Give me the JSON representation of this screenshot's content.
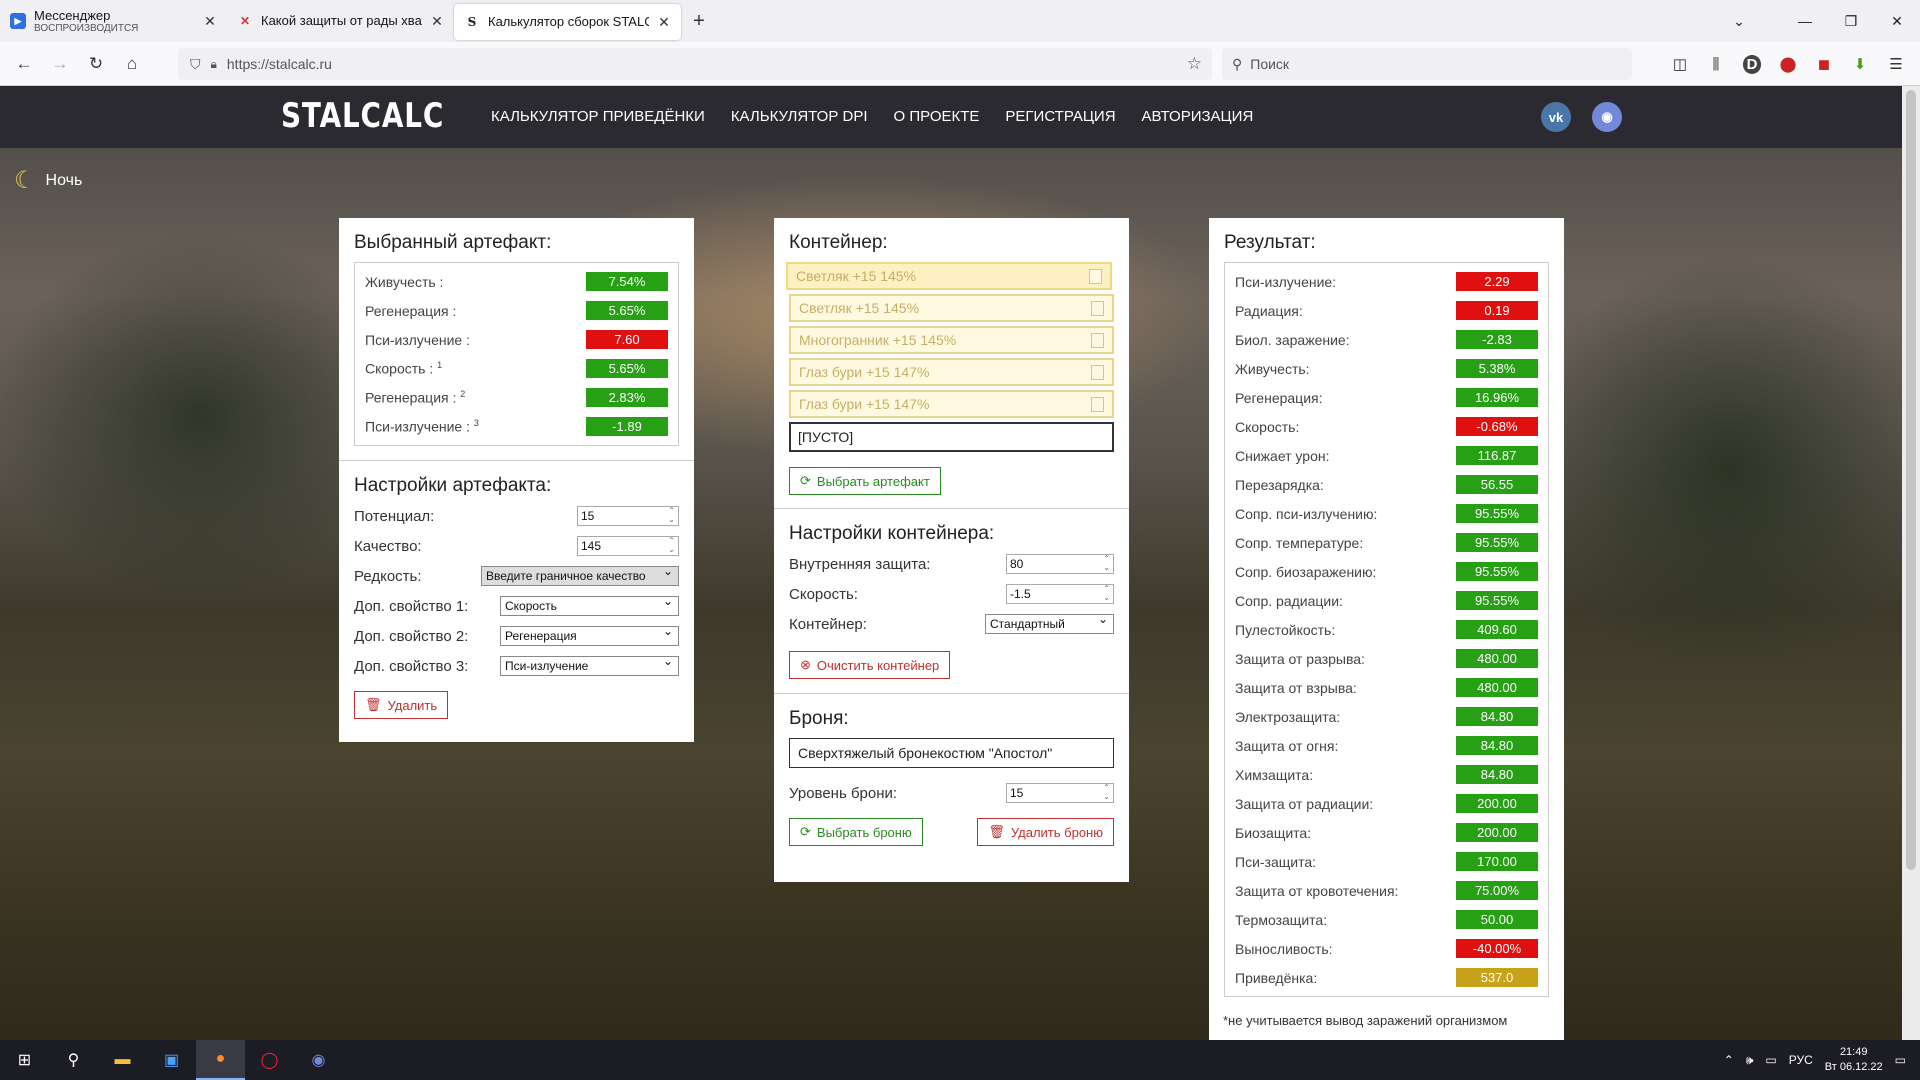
{
  "browser": {
    "tabs": [
      {
        "title": "Мессенджер",
        "subtitle": "ВОСПРОИЗВОДИТСЯ",
        "active": false
      },
      {
        "title": "Какой защиты от рады хватит",
        "active": false
      },
      {
        "title": "Калькулятор сборок STALCALC",
        "active": true
      }
    ],
    "url": "https://stalcalc.ru",
    "search_placeholder": "Поиск"
  },
  "site": {
    "logo": "STALCALC",
    "menu": [
      "КАЛЬКУЛЯТОР ПРИВЕДЁНКИ",
      "КАЛЬКУЛЯТОР DPI",
      "О ПРОЕКТЕ",
      "РЕГИСТРАЦИЯ",
      "АВТОРИЗАЦИЯ"
    ],
    "night_label": "Ночь",
    "social": {
      "vk": "VK",
      "discord": "Discord"
    }
  },
  "artifact": {
    "title": "Выбранный артефакт:",
    "stats": [
      {
        "label": "Живучесть :",
        "sup": "",
        "value": "7.54%",
        "color": "g"
      },
      {
        "label": "Регенерация :",
        "sup": "",
        "value": "5.65%",
        "color": "g"
      },
      {
        "label": "Пси-излучение :",
        "sup": "",
        "value": "7.60",
        "color": "r"
      },
      {
        "label": "Скорость :",
        "sup": "1",
        "value": "5.65%",
        "color": "g"
      },
      {
        "label": "Регенерация :",
        "sup": "2",
        "value": "2.83%",
        "color": "g"
      },
      {
        "label": "Пси-излучение :",
        "sup": "3",
        "value": "-1.89",
        "color": "g"
      }
    ],
    "settings_title": "Настройки артефакта:",
    "potential_label": "Потенциал:",
    "potential_value": "15",
    "quality_label": "Качество:",
    "quality_value": "145",
    "rarity_label": "Редкость:",
    "rarity_value": "Введите граничное качество",
    "extra1_label": "Доп. свойство 1:",
    "extra1_value": "Скорость",
    "extra2_label": "Доп. свойство 2:",
    "extra2_value": "Регенерация",
    "extra3_label": "Доп. свойство 3:",
    "extra3_value": "Пси-излучение",
    "delete_label": "Удалить"
  },
  "container": {
    "title": "Контейнер:",
    "slots": [
      "Светляк +15 145%",
      "Светляк +15 145%",
      "Многогранник +15 145%",
      "Глаз бури +15 147%",
      "Глаз бури +15 147%"
    ],
    "empty_slot": "[ПУСТО]",
    "choose_label": "Выбрать артефакт",
    "settings_title": "Настройки контейнера:",
    "inner_label": "Внутренняя защита:",
    "inner_value": "80",
    "speed_label": "Скорость:",
    "speed_value": "-1.5",
    "type_label": "Контейнер:",
    "type_value": "Стандартный",
    "clear_label": "Очистить контейнер"
  },
  "armor": {
    "title": "Броня:",
    "name": "Сверхтяжелый бронекостюм \"Апостол\"",
    "level_label": "Уровень брони:",
    "level_value": "15",
    "choose_label": "Выбрать броню",
    "delete_label": "Удалить броню"
  },
  "result": {
    "title": "Результат:",
    "stats": [
      {
        "label": "Пси-излучение:",
        "value": "2.29",
        "color": "r"
      },
      {
        "label": "Радиация:",
        "value": "0.19",
        "color": "r"
      },
      {
        "label": "Биол. заражение:",
        "value": "-2.83",
        "color": "g"
      },
      {
        "label": "Живучесть:",
        "value": "5.38%",
        "color": "g"
      },
      {
        "label": "Регенерация:",
        "value": "16.96%",
        "color": "g"
      },
      {
        "label": "Скорость:",
        "value": "-0.68%",
        "color": "r"
      },
      {
        "label": "Снижает урон:",
        "value": "116.87",
        "color": "g"
      },
      {
        "label": "Перезарядка:",
        "value": "56.55",
        "color": "g"
      },
      {
        "label": "Сопр. пси-излучению:",
        "value": "95.55%",
        "color": "g"
      },
      {
        "label": "Сопр. температуре:",
        "value": "95.55%",
        "color": "g"
      },
      {
        "label": "Сопр. биозаражению:",
        "value": "95.55%",
        "color": "g"
      },
      {
        "label": "Сопр. радиации:",
        "value": "95.55%",
        "color": "g"
      },
      {
        "label": "Пулестойкость:",
        "value": "409.60",
        "color": "g"
      },
      {
        "label": "Защита от разрыва:",
        "value": "480.00",
        "color": "g"
      },
      {
        "label": "Защита от взрыва:",
        "value": "480.00",
        "color": "g"
      },
      {
        "label": "Электрозащита:",
        "value": "84.80",
        "color": "g"
      },
      {
        "label": "Защита от огня:",
        "value": "84.80",
        "color": "g"
      },
      {
        "label": "Химзащита:",
        "value": "84.80",
        "color": "g"
      },
      {
        "label": "Защита от радиации:",
        "value": "200.00",
        "color": "g"
      },
      {
        "label": "Биозащита:",
        "value": "200.00",
        "color": "g"
      },
      {
        "label": "Пси-защита:",
        "value": "170.00",
        "color": "g"
      },
      {
        "label": "Защита от кровотечения:",
        "value": "75.00%",
        "color": "g"
      },
      {
        "label": "Термозащита:",
        "value": "50.00",
        "color": "g"
      },
      {
        "label": "Выносливость:",
        "value": "-40.00%",
        "color": "r"
      },
      {
        "label": "Приведёнка:",
        "value": "537.0",
        "color": "y"
      }
    ],
    "note": "*не учитывается вывод заражений организмом"
  },
  "taskbar": {
    "lang": "РУС",
    "time": "21:49",
    "date": "Вт 06.12.22"
  }
}
